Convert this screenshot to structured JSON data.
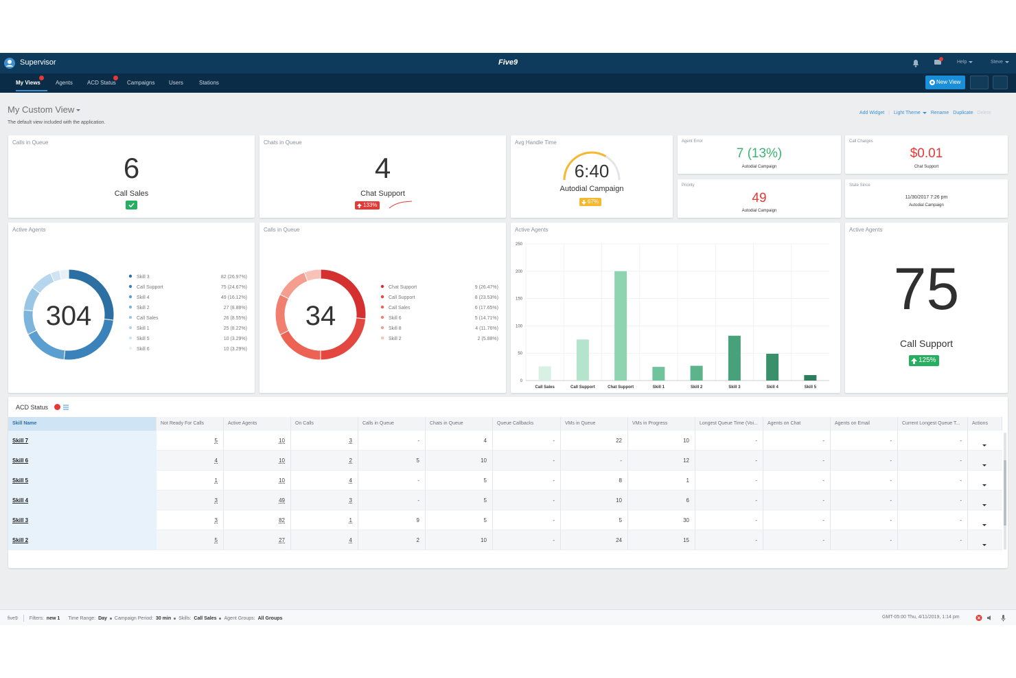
{
  "header": {
    "app_name": "Supervisor",
    "logo": "Five9",
    "menus": [
      "Help",
      "Steve"
    ]
  },
  "nav": {
    "tabs": [
      "My Views",
      "Agents",
      "ACD Status",
      "Campaigns",
      "Users",
      "Stations"
    ],
    "new_view_button": "New View"
  },
  "view": {
    "title": "My Custom View",
    "description": "The default view included with the application.",
    "actions": [
      "Add Widget",
      "Light Theme",
      "Rename",
      "Duplicate",
      "Delete"
    ]
  },
  "widgets": {
    "calls_in_queue": {
      "title": "Calls in Queue",
      "value": 6,
      "label": "Call Sales"
    },
    "chats_in_queue": {
      "title": "Chats in Queue",
      "value": 4,
      "label": "Chat Support",
      "change": "133%"
    },
    "avg_handle_time": {
      "title": "Avg Handle Time",
      "value": "6:40",
      "label": "Autodial Campaign",
      "change": "67%"
    },
    "agent_error": {
      "title": "Agent Error",
      "value": "7 (13%)",
      "label": "Autodial Campaign"
    },
    "call_charges": {
      "title": "Call Charges",
      "value": "$0.01",
      "label": "Chat Support"
    },
    "priority": {
      "title": "Priority",
      "value": 49,
      "label": "Autodial Campaign"
    },
    "state_since": {
      "title": "State Since",
      "value": "11/30/2017 7:26 pm",
      "label": "Autodial Campaign"
    },
    "active_agents_donut": {
      "type": "donut",
      "title": "Active Agents",
      "total": 304,
      "items": [
        {
          "name": "Skill 3",
          "value": 82,
          "label": "82 (26.97%)",
          "color": "#2c6fa3"
        },
        {
          "name": "Call Support",
          "value": 75,
          "label": "75 (24.67%)",
          "color": "#3b82bb"
        },
        {
          "name": "Skill 4",
          "value": 49,
          "label": "49 (16.12%)",
          "color": "#5b9fd0"
        },
        {
          "name": "Skill 2",
          "value": 27,
          "label": "27 (8.88%)",
          "color": "#7cb4dc"
        },
        {
          "name": "Call Sales",
          "value": 26,
          "label": "26 (8.55%)",
          "color": "#9ac6e5"
        },
        {
          "name": "Skill 1",
          "value": 25,
          "label": "25 (8.22%)",
          "color": "#b5d6ed"
        },
        {
          "name": "Skill 5",
          "value": 10,
          "label": "10 (3.29%)",
          "color": "#cfe4f3"
        },
        {
          "name": "Skill 6",
          "value": 10,
          "label": "10 (3.29%)",
          "color": "#e6f0f8"
        }
      ]
    },
    "calls_in_queue_donut": {
      "type": "donut",
      "title": "Calls in Queue",
      "total": 34,
      "items": [
        {
          "name": "Chat Support",
          "value": 9,
          "label": "9 (26.47%)",
          "color": "#d3302f"
        },
        {
          "name": "Call Support",
          "value": 8,
          "label": "8 (23.53%)",
          "color": "#e2483f"
        },
        {
          "name": "Call Sales",
          "value": 6,
          "label": "6 (17.65%)",
          "color": "#ec6353"
        },
        {
          "name": "Skill 6",
          "value": 5,
          "label": "5 (14.71%)",
          "color": "#f17f70"
        },
        {
          "name": "Skill 8",
          "value": 4,
          "label": "4 (11.76%)",
          "color": "#f59d8f"
        },
        {
          "name": "Skill 2",
          "value": 2,
          "label": "2 (5.88%)",
          "color": "#f9c2b8"
        }
      ]
    },
    "active_agents_bar": {
      "type": "bar",
      "title": "Active Agents",
      "categories": [
        "Call Sales",
        "Call Support",
        "Chat Support",
        "Skill 1",
        "Skill 2",
        "Skill 3",
        "Skill 4",
        "Skill 5"
      ],
      "values": [
        26,
        75,
        200,
        25,
        27,
        82,
        49,
        10
      ],
      "colors": [
        "#d8f1e4",
        "#b4e4cc",
        "#8fd4b0",
        "#70c39c",
        "#5bb48b",
        "#47a27b",
        "#39906b",
        "#2d7c5c"
      ],
      "ylim": [
        0,
        250
      ],
      "yticks": [
        0,
        50,
        100,
        150,
        200,
        250
      ],
      "grid": true
    },
    "active_agents_total": {
      "title": "Active Agents",
      "value": 75,
      "label": "Call Support",
      "change": "125%"
    }
  },
  "acd_status": {
    "title": "ACD Status",
    "columns": [
      "Skill Name",
      "Not Ready For Calls",
      "Active Agents",
      "On Calls",
      "Calls in Queue",
      "Chats in Queue",
      "Queue Callbacks",
      "VMs in Queue",
      "VMs in Progress",
      "Longest Queue Time (Voi...",
      "Agents on Chat",
      "Agents on Email",
      "Current Longest Queue T...",
      "Actions"
    ],
    "rows": [
      {
        "name": "Skill 7",
        "cells": [
          5,
          10,
          3,
          "-",
          4,
          "-",
          22,
          10,
          "-",
          "-",
          "-",
          "-"
        ]
      },
      {
        "name": "Skill 6",
        "cells": [
          4,
          10,
          2,
          5,
          10,
          "-",
          "-",
          12,
          "-",
          "-",
          "-",
          "-"
        ]
      },
      {
        "name": "Skill 5",
        "cells": [
          1,
          10,
          4,
          "-",
          5,
          "-",
          8,
          1,
          "-",
          "-",
          "-",
          "-"
        ]
      },
      {
        "name": "Skill 4",
        "cells": [
          3,
          49,
          3,
          "-",
          5,
          "-",
          10,
          6,
          "-",
          "-",
          "-",
          "-"
        ]
      },
      {
        "name": "Skill 3",
        "cells": [
          3,
          82,
          1,
          9,
          5,
          "-",
          5,
          30,
          "-",
          "-",
          "-",
          "-"
        ]
      },
      {
        "name": "Skill 2",
        "cells": [
          5,
          27,
          4,
          2,
          10,
          "-",
          24,
          15,
          "-",
          "-",
          "-",
          "-"
        ]
      }
    ]
  },
  "footer": {
    "brand": "five9",
    "filters": [
      {
        "label": "Filters:",
        "value": "new 1"
      },
      {
        "label": "Time Range:",
        "value": "Day"
      },
      {
        "label": "Campaign Period:",
        "value": "30 min"
      },
      {
        "label": "Skills:",
        "value": "Call Sales"
      },
      {
        "label": "Agent Groups:",
        "value": "All Groups"
      }
    ],
    "timestamp": "GMT-05:00 Thu, 4/11/2019, 1:14 pm"
  }
}
